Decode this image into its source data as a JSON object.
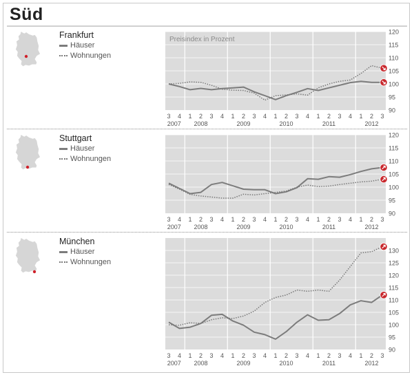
{
  "region_title": "Süd",
  "legend": {
    "houses": "Häuser",
    "apartments": "Wohnungen"
  },
  "colors": {
    "houses": "#7c7c7c",
    "apartments": "#777777",
    "plot_bg": "#dcdcdc",
    "marker": "#c8282d",
    "map": "#d6d6d6",
    "dot": "#d0202a"
  },
  "icons": {
    "map": "germany-map-icon",
    "trend_down": "arrow-down-right-icon",
    "trend_up": "arrow-up-right-icon"
  },
  "chart_data": [
    {
      "type": "line",
      "title": "Frankfurt",
      "annotation": "Preisindex in Prozent",
      "x": [
        "3/2007",
        "4/2007",
        "1/2008",
        "2/2008",
        "3/2008",
        "4/2008",
        "1/2009",
        "2/2009",
        "3/2009",
        "4/2009",
        "1/2010",
        "2/2010",
        "3/2010",
        "4/2010",
        "1/2011",
        "2/2011",
        "3/2011",
        "4/2011",
        "1/2012",
        "2/2012",
        "3/2012"
      ],
      "x_ticks": [
        "3",
        "4",
        "1",
        "2",
        "3",
        "4",
        "1",
        "2",
        "3",
        "4",
        "1",
        "2",
        "3",
        "4",
        "1",
        "2",
        "3",
        "4",
        "1",
        "2",
        "3"
      ],
      "year_labels": [
        "2007",
        "2008",
        "2009",
        "2010",
        "2011",
        "2012"
      ],
      "ylim": [
        90,
        120
      ],
      "y_ticks": [
        90,
        95,
        100,
        105,
        110,
        115,
        120
      ],
      "grid": true,
      "series": [
        {
          "name": "Häuser",
          "style": "solid",
          "values": [
            100,
            99,
            97.8,
            98.3,
            97.8,
            98.2,
            98.5,
            98.8,
            97,
            95.5,
            94,
            95.5,
            96.8,
            98.2,
            97.5,
            98.5,
            99.5,
            100.5,
            101,
            100.6,
            100.6
          ],
          "trend": "down"
        },
        {
          "name": "Wohnungen",
          "style": "dotted",
          "values": [
            100,
            100.2,
            100.8,
            100.6,
            99.5,
            98,
            97.6,
            97.5,
            96.5,
            93.8,
            95.5,
            95.8,
            96.2,
            95.7,
            98.5,
            100,
            101,
            101.5,
            104,
            107,
            106
          ],
          "trend": "down"
        }
      ]
    },
    {
      "type": "line",
      "title": "Stuttgart",
      "x": [
        "3/2007",
        "4/2007",
        "1/2008",
        "2/2008",
        "3/2008",
        "4/2008",
        "1/2009",
        "2/2009",
        "3/2009",
        "4/2009",
        "1/2010",
        "2/2010",
        "3/2010",
        "4/2010",
        "1/2011",
        "2/2011",
        "3/2011",
        "4/2011",
        "1/2012",
        "2/2012",
        "3/2012"
      ],
      "x_ticks": [
        "3",
        "4",
        "1",
        "2",
        "3",
        "4",
        "1",
        "2",
        "3",
        "4",
        "1",
        "2",
        "3",
        "4",
        "1",
        "2",
        "3",
        "4",
        "1",
        "2",
        "3"
      ],
      "year_labels": [
        "2007",
        "2008",
        "2009",
        "2010",
        "2011",
        "2012"
      ],
      "ylim": [
        90,
        120
      ],
      "y_ticks": [
        90,
        95,
        100,
        105,
        110,
        115,
        120
      ],
      "grid": true,
      "series": [
        {
          "name": "Häuser",
          "style": "solid",
          "values": [
            101.5,
            99.5,
            97.5,
            98,
            101,
            101.8,
            100.5,
            99.2,
            99,
            99,
            97.5,
            98.2,
            99.8,
            103.2,
            103,
            104,
            103.8,
            104.8,
            106,
            107,
            107.5
          ],
          "trend": "up"
        },
        {
          "name": "Wohnungen",
          "style": "dotted",
          "values": [
            101,
            99.2,
            97.2,
            96.6,
            96.2,
            95.8,
            95.8,
            97.3,
            97,
            97.5,
            98,
            98.5,
            100,
            100.8,
            100.2,
            100.4,
            101,
            101.5,
            102,
            102.3,
            103
          ],
          "trend": "up"
        }
      ]
    },
    {
      "type": "line",
      "title": "München",
      "x": [
        "3/2007",
        "4/2007",
        "1/2008",
        "2/2008",
        "3/2008",
        "4/2008",
        "1/2009",
        "2/2009",
        "3/2009",
        "4/2009",
        "1/2010",
        "2/2010",
        "3/2010",
        "4/2010",
        "1/2011",
        "2/2011",
        "3/2011",
        "4/2011",
        "1/2012",
        "2/2012",
        "3/2012"
      ],
      "x_ticks": [
        "3",
        "4",
        "1",
        "2",
        "3",
        "4",
        "1",
        "2",
        "3",
        "4",
        "1",
        "2",
        "3",
        "4",
        "1",
        "2",
        "3",
        "4",
        "1",
        "2",
        "3"
      ],
      "year_labels": [
        "2007",
        "2008",
        "2009",
        "2010",
        "2011",
        "2012"
      ],
      "ylim": [
        90,
        135
      ],
      "y_ticks": [
        90,
        95,
        100,
        105,
        110,
        115,
        120,
        125,
        130
      ],
      "grid": true,
      "series": [
        {
          "name": "Häuser",
          "style": "solid",
          "values": [
            101,
            98.5,
            99,
            100.5,
            103.8,
            104.2,
            101.5,
            99.8,
            97,
            96,
            94.2,
            97.2,
            101,
            104,
            101.8,
            102,
            104.5,
            108,
            109.7,
            109,
            112
          ],
          "trend": "up"
        },
        {
          "name": "Wohnungen",
          "style": "dotted",
          "values": [
            100,
            99.8,
            100.8,
            100.5,
            102,
            102.8,
            102.5,
            103.5,
            105.5,
            109,
            111,
            112,
            114,
            113.5,
            114,
            113.5,
            118,
            123.5,
            129,
            129.5,
            131.5
          ],
          "trend": "up"
        }
      ]
    }
  ]
}
